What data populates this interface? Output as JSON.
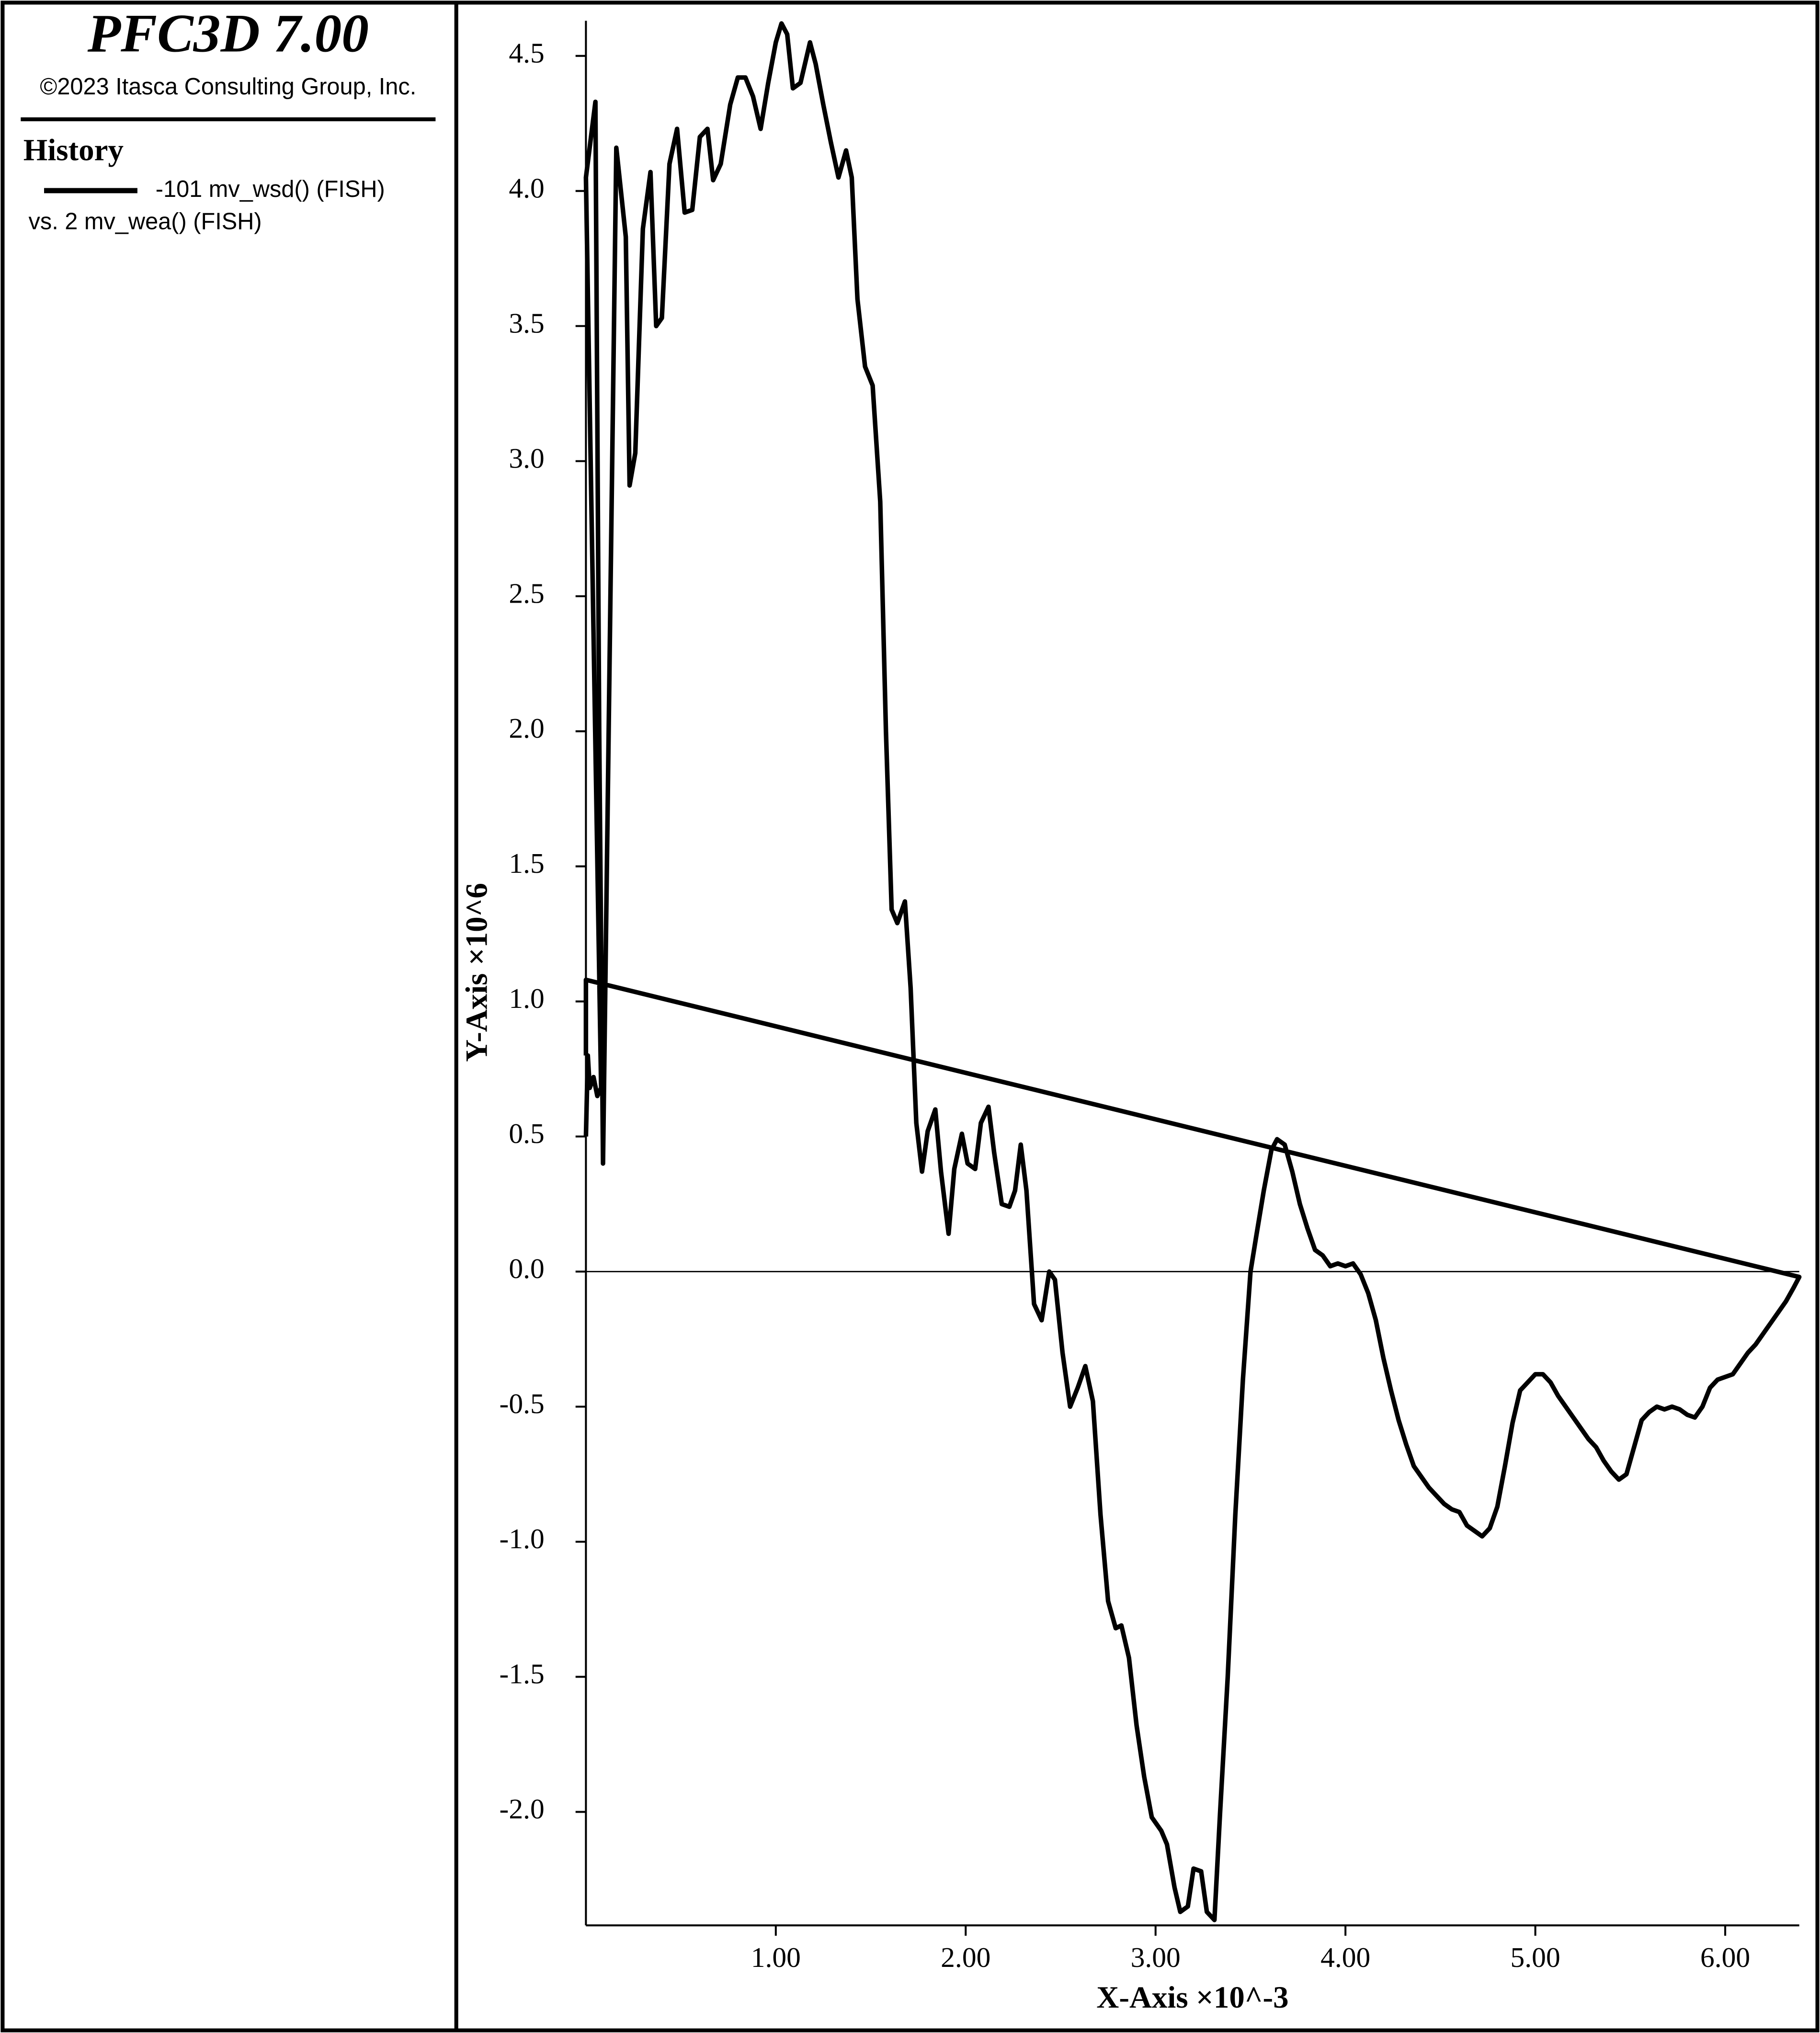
{
  "panel": {
    "title": "PFC3D 7.00",
    "copyright": "©2023 Itasca Consulting Group, Inc.",
    "heading": "History"
  },
  "chart_data": {
    "type": "line",
    "x_label": "X-Axis ×10^-3",
    "y_label": "Y-Axis ×10^6",
    "x_series_label": "vs. 2 mv_wea() (FISH)",
    "xlim": [
      0,
      6.39
    ],
    "ylim": [
      -2.42,
      4.63
    ],
    "xticks": [
      {
        "value": 1,
        "label": "1.00"
      },
      {
        "value": 2,
        "label": "2.00"
      },
      {
        "value": 3,
        "label": "3.00"
      },
      {
        "value": 4,
        "label": "4.00"
      },
      {
        "value": 5,
        "label": "5.00"
      },
      {
        "value": 6,
        "label": "6.00"
      }
    ],
    "yticks": [
      {
        "value": -2,
        "label": "-2.0"
      },
      -1.5,
      {
        "value": -1,
        "label": "-1.0"
      },
      -0.5,
      {
        "value": 0,
        "label": "0.0"
      },
      0.5,
      {
        "value": 1,
        "label": "1.0"
      },
      1.5,
      {
        "value": 2,
        "label": "2.0"
      },
      2.5,
      {
        "value": 3,
        "label": "3.0"
      },
      3.5,
      {
        "value": 4,
        "label": "4.0"
      },
      4.5
    ],
    "zero_line": true,
    "x": [
      0.0,
      0.01,
      0.02,
      0.04,
      0.06,
      0.08,
      0.0,
      0.05,
      0.07,
      0.09,
      0.16,
      0.21,
      0.23,
      0.26,
      0.3,
      0.34,
      0.37,
      0.4,
      0.44,
      0.48,
      0.52,
      0.56,
      0.6,
      0.64,
      0.67,
      0.71,
      0.76,
      0.8,
      0.84,
      0.88,
      0.92,
      0.96,
      1.0,
      1.03,
      1.06,
      1.09,
      1.13,
      1.18,
      1.21,
      1.25,
      1.29,
      1.33,
      1.37,
      1.4,
      1.43,
      1.47,
      1.51,
      1.55,
      1.58,
      1.61,
      1.64,
      1.68,
      1.71,
      1.74,
      1.77,
      1.8,
      1.84,
      1.87,
      1.91,
      1.94,
      1.98,
      2.01,
      2.05,
      2.08,
      2.12,
      2.15,
      2.19,
      2.23,
      2.26,
      2.29,
      2.32,
      2.36,
      2.4,
      2.44,
      2.47,
      2.51,
      2.55,
      2.59,
      2.63,
      2.67,
      2.71,
      2.75,
      2.79,
      2.82,
      2.86,
      2.9,
      2.94,
      2.98,
      3.03,
      3.06,
      3.1,
      3.13,
      3.17,
      3.2,
      3.24,
      3.27,
      3.31,
      3.34,
      3.38,
      3.42,
      3.46,
      3.5,
      3.53,
      3.57,
      3.61,
      3.64,
      3.68,
      3.72,
      3.76,
      3.8,
      3.84,
      3.88,
      3.92,
      3.96,
      4.0,
      4.04,
      4.08,
      4.12,
      4.16,
      4.2,
      4.24,
      4.28,
      4.32,
      4.36,
      4.4,
      4.44,
      4.48,
      4.52,
      4.56,
      4.6,
      4.64,
      4.68,
      4.72,
      4.76,
      4.8,
      4.84,
      4.88,
      4.92,
      4.96,
      5.0,
      5.04,
      5.08,
      5.12,
      5.16,
      5.2,
      5.24,
      5.28,
      5.32,
      5.36,
      5.4,
      5.44,
      5.48,
      5.52,
      5.56,
      5.6,
      5.64,
      5.68,
      5.72,
      5.76,
      5.8,
      5.84,
      5.88,
      5.92,
      5.96,
      6.0,
      6.04,
      6.08,
      6.12,
      6.16,
      6.2,
      6.24,
      6.28,
      6.32,
      6.36,
      6.39,
      0.0,
      0.0
    ],
    "series": [
      {
        "name": "-101 mv_wsd() (FISH)",
        "color": "#000000",
        "values": [
          0.5,
          0.8,
          0.68,
          0.72,
          0.65,
          0.68,
          4.05,
          4.33,
          2.0,
          0.4,
          4.16,
          3.83,
          2.91,
          3.03,
          3.86,
          4.07,
          3.5,
          3.53,
          4.1,
          4.23,
          3.92,
          3.93,
          4.2,
          4.23,
          4.04,
          4.1,
          4.32,
          4.42,
          4.42,
          4.35,
          4.23,
          4.4,
          4.55,
          4.62,
          4.58,
          4.38,
          4.4,
          4.55,
          4.47,
          4.32,
          4.18,
          4.05,
          4.15,
          4.05,
          3.6,
          3.35,
          3.28,
          2.85,
          2.0,
          1.34,
          1.29,
          1.37,
          1.05,
          0.55,
          0.37,
          0.52,
          0.6,
          0.37,
          0.14,
          0.38,
          0.51,
          0.4,
          0.38,
          0.55,
          0.61,
          0.44,
          0.25,
          0.24,
          0.3,
          0.47,
          0.3,
          -0.12,
          -0.18,
          0.0,
          -0.03,
          -0.3,
          -0.5,
          -0.43,
          -0.35,
          -0.48,
          -0.9,
          -1.22,
          -1.32,
          -1.31,
          -1.43,
          -1.68,
          -1.87,
          -2.02,
          -2.07,
          -2.12,
          -2.28,
          -2.37,
          -2.35,
          -2.21,
          -2.22,
          -2.37,
          -2.4,
          -2.0,
          -1.5,
          -0.9,
          -0.4,
          0.0,
          0.13,
          0.3,
          0.45,
          0.49,
          0.47,
          0.37,
          0.25,
          0.16,
          0.08,
          0.06,
          0.02,
          0.03,
          0.02,
          0.03,
          -0.01,
          -0.08,
          -0.18,
          -0.32,
          -0.44,
          -0.55,
          -0.64,
          -0.72,
          -0.76,
          -0.8,
          -0.83,
          -0.86,
          -0.88,
          -0.89,
          -0.94,
          -0.96,
          -0.98,
          -0.95,
          -0.87,
          -0.72,
          -0.56,
          -0.44,
          -0.41,
          -0.38,
          -0.38,
          -0.41,
          -0.46,
          -0.5,
          -0.54,
          -0.58,
          -0.62,
          -0.65,
          -0.7,
          -0.74,
          -0.77,
          -0.75,
          -0.65,
          -0.55,
          -0.52,
          -0.5,
          -0.51,
          -0.5,
          -0.51,
          -0.53,
          -0.54,
          -0.5,
          -0.43,
          -0.4,
          -0.39,
          -0.38,
          -0.34,
          -0.3,
          -0.27,
          -0.23,
          -0.19,
          -0.15,
          -0.11,
          -0.06,
          -0.02,
          1.08,
          0.8
        ]
      }
    ]
  }
}
